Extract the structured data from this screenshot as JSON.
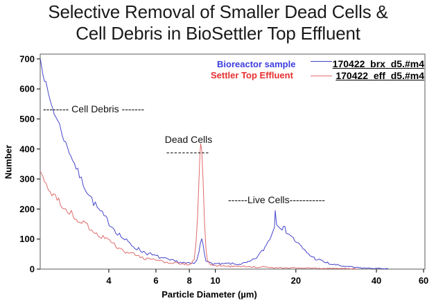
{
  "title": {
    "line1": "Selective Removal of Smaller Dead Cells &",
    "line2": "Cell Debris in BioSettler Top Effluent"
  },
  "chart_data": {
    "type": "line",
    "title": "Selective Removal of Smaller Dead Cells & Cell Debris in BioSettler Top Effluent",
    "xlabel": "Particle Diameter (µm)",
    "ylabel": "Number",
    "x_scale": "log",
    "xlim": [
      2.217,
      60.7
    ],
    "ylim": [
      0,
      716
    ],
    "x_ticks": [
      4,
      6,
      8,
      10,
      20,
      40,
      60
    ],
    "y_ticks": [
      0,
      100,
      200,
      300,
      400,
      500,
      600,
      700
    ],
    "grid": false,
    "legend_position": "top-right-inside",
    "frame_color": "#5a5a5a",
    "series": [
      {
        "name": "170422_brx_d5.#m4",
        "label": "Bioreactor sample",
        "color": "#4444cc",
        "label_color": "#3d3de0",
        "points": [
          [
            2.22,
            700
          ],
          [
            2.27,
            655
          ],
          [
            2.33,
            615
          ],
          [
            2.38,
            580
          ],
          [
            2.44,
            550
          ],
          [
            2.5,
            522
          ],
          [
            2.56,
            498
          ],
          [
            2.62,
            478
          ],
          [
            2.68,
            450
          ],
          [
            2.76,
            418
          ],
          [
            2.85,
            392
          ],
          [
            2.93,
            366
          ],
          [
            3.02,
            338
          ],
          [
            3.11,
            310
          ],
          [
            3.21,
            285
          ],
          [
            3.31,
            262
          ],
          [
            3.41,
            242
          ],
          [
            3.51,
            222
          ],
          [
            3.62,
            205
          ],
          [
            3.72,
            190
          ],
          [
            3.84,
            175
          ],
          [
            3.95,
            161
          ],
          [
            4.07,
            148
          ],
          [
            4.19,
            134
          ],
          [
            4.32,
            121
          ],
          [
            4.45,
            109
          ],
          [
            4.59,
            98
          ],
          [
            4.73,
            88
          ],
          [
            4.87,
            80
          ],
          [
            5.02,
            73
          ],
          [
            5.17,
            66
          ],
          [
            5.33,
            60
          ],
          [
            5.49,
            55
          ],
          [
            5.65,
            51
          ],
          [
            5.82,
            46
          ],
          [
            6.0,
            43
          ],
          [
            6.18,
            40
          ],
          [
            6.37,
            36
          ],
          [
            6.56,
            32
          ],
          [
            6.76,
            29
          ],
          [
            6.97,
            27
          ],
          [
            7.18,
            25
          ],
          [
            7.39,
            23
          ],
          [
            7.62,
            21
          ],
          [
            7.85,
            19
          ],
          [
            8.09,
            18
          ],
          [
            8.33,
            19
          ],
          [
            8.53,
            28
          ],
          [
            8.69,
            55
          ],
          [
            8.79,
            85
          ],
          [
            8.9,
            104
          ],
          [
            9.0,
            86
          ],
          [
            9.11,
            54
          ],
          [
            9.22,
            30
          ],
          [
            9.39,
            21
          ],
          [
            9.96,
            18
          ],
          [
            10.58,
            16
          ],
          [
            11.23,
            19
          ],
          [
            11.92,
            16
          ],
          [
            12.65,
            18
          ],
          [
            13.27,
            22
          ],
          [
            13.84,
            30
          ],
          [
            14.43,
            43
          ],
          [
            14.95,
            58
          ],
          [
            15.5,
            80
          ],
          [
            15.96,
            103
          ],
          [
            16.35,
            122
          ],
          [
            16.64,
            140
          ],
          [
            16.74,
            196
          ],
          [
            16.95,
            152
          ],
          [
            17.36,
            148
          ],
          [
            17.77,
            138
          ],
          [
            18.2,
            132
          ],
          [
            18.64,
            124
          ],
          [
            19.09,
            112
          ],
          [
            19.55,
            101
          ],
          [
            20.03,
            92
          ],
          [
            20.5,
            82
          ],
          [
            21.0,
            72
          ],
          [
            21.51,
            62
          ],
          [
            22.02,
            55
          ],
          [
            22.56,
            47
          ],
          [
            23.1,
            40
          ],
          [
            23.66,
            35
          ],
          [
            24.38,
            30
          ],
          [
            25.12,
            26
          ],
          [
            25.88,
            22
          ],
          [
            26.66,
            18
          ],
          [
            27.47,
            15
          ],
          [
            28.64,
            13
          ],
          [
            29.86,
            10
          ],
          [
            31.14,
            8
          ],
          [
            32.86,
            6
          ],
          [
            34.88,
            4
          ],
          [
            37.02,
            3
          ],
          [
            39.29,
            2.5
          ],
          [
            41.7,
            2
          ],
          [
            44.26,
            1.5
          ]
        ]
      },
      {
        "name": "170422_eff_d5.#m4",
        "label": "Settler Top Effluent",
        "color": "#e06a6a",
        "label_color": "#e82e2e",
        "points": [
          [
            2.22,
            325
          ],
          [
            2.27,
            302
          ],
          [
            2.33,
            284
          ],
          [
            2.38,
            268
          ],
          [
            2.45,
            252
          ],
          [
            2.53,
            238
          ],
          [
            2.6,
            225
          ],
          [
            2.68,
            212
          ],
          [
            2.76,
            200
          ],
          [
            2.85,
            190
          ],
          [
            2.95,
            178
          ],
          [
            3.06,
            166
          ],
          [
            3.17,
            155
          ],
          [
            3.29,
            145
          ],
          [
            3.41,
            135
          ],
          [
            3.55,
            124
          ],
          [
            3.7,
            113
          ],
          [
            3.86,
            103
          ],
          [
            4.02,
            92
          ],
          [
            4.19,
            82
          ],
          [
            4.37,
            72
          ],
          [
            4.56,
            62
          ],
          [
            4.75,
            54
          ],
          [
            4.96,
            48
          ],
          [
            5.17,
            42
          ],
          [
            5.42,
            37
          ],
          [
            5.69,
            33
          ],
          [
            5.96,
            29
          ],
          [
            6.26,
            26
          ],
          [
            6.56,
            23
          ],
          [
            6.88,
            21
          ],
          [
            7.22,
            19
          ],
          [
            7.57,
            17
          ],
          [
            7.85,
            16
          ],
          [
            8.13,
            18
          ],
          [
            8.33,
            32
          ],
          [
            8.48,
            90
          ],
          [
            8.59,
            180
          ],
          [
            8.69,
            300
          ],
          [
            8.77,
            390
          ],
          [
            8.82,
            415
          ],
          [
            8.9,
            392
          ],
          [
            9.0,
            300
          ],
          [
            9.11,
            160
          ],
          [
            9.22,
            70
          ],
          [
            9.33,
            32
          ],
          [
            9.5,
            18
          ],
          [
            9.85,
            13
          ],
          [
            10.33,
            11
          ],
          [
            10.83,
            12
          ],
          [
            11.36,
            9
          ],
          [
            11.92,
            11
          ],
          [
            12.65,
            8
          ],
          [
            13.43,
            9
          ],
          [
            14.26,
            6
          ],
          [
            15.13,
            7
          ],
          [
            16.06,
            5
          ],
          [
            17.05,
            5
          ],
          [
            18.31,
            4
          ],
          [
            19.67,
            4
          ],
          [
            21.13,
            3
          ],
          [
            22.97,
            3
          ],
          [
            25.12,
            2
          ],
          [
            27.47,
            2
          ],
          [
            30.04,
            1.5
          ],
          [
            33.85,
            1
          ]
        ]
      }
    ],
    "annotations": [
      {
        "text": "-------- Cell Debris -------"
      },
      {
        "text": "Dead Cells"
      },
      {
        "text": "-----------"
      },
      {
        "text": "------Live Cells-----------"
      }
    ]
  }
}
